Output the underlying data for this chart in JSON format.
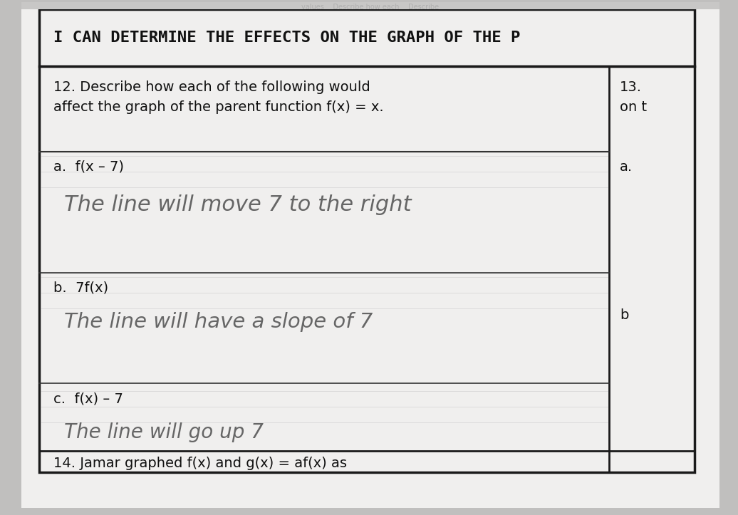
{
  "bg_color": "#c0bfbe",
  "paper_color": "#f0efee",
  "header_text": "I CAN DETERMINE THE EFFECTS ON THE GRAPH OF THE P",
  "q12_line1": "12. Describe how each of the following would",
  "q12_line2": "affect the graph of the parent function f(x) = x.",
  "q13_label": "13.",
  "q13_sub": "on t",
  "label_a": "a.  f(x – 7)",
  "handwriting_a": "The line will move 7 to the right",
  "label_b": "b.  7f(x)",
  "handwriting_b": "The line will have a slope of 7",
  "label_c": "c.  f(x) – 7",
  "handwriting_c": "The line will go up 7",
  "q14_text": "14. Jamar graphed f(x) and g(x) = af(x) as",
  "right_a": "a.",
  "right_b": "b",
  "header_fontsize": 16,
  "body_fontsize": 14,
  "handwriting_fontsize": 20,
  "text_color": "#111111",
  "handwriting_color": "#666666",
  "border_color": "#1a1a1a",
  "line_color": "#333333"
}
